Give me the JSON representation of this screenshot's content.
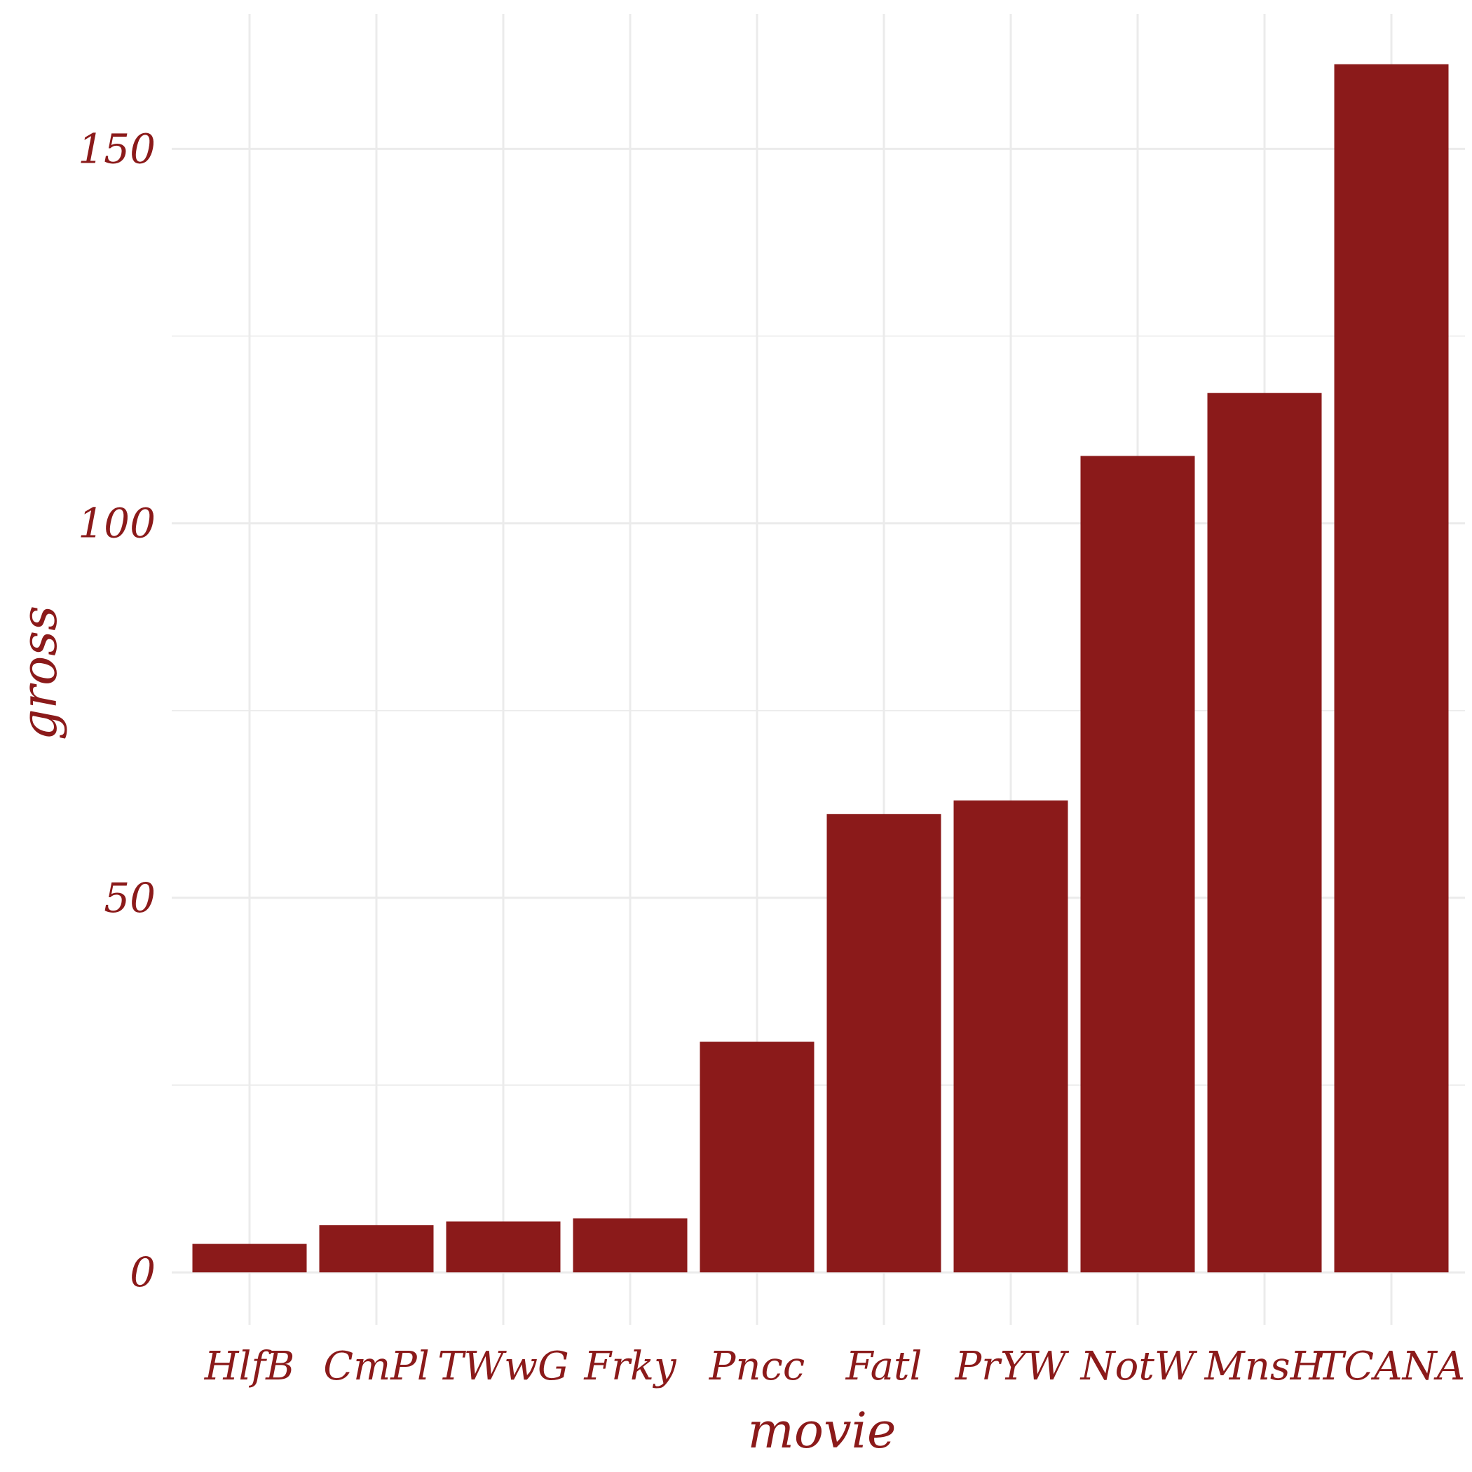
{
  "chart_data": {
    "type": "bar",
    "title": "",
    "xlabel": "movie",
    "ylabel": "gross",
    "categories": [
      "HlfB",
      "CmPl",
      "TWwG",
      "Frky",
      "Pncc",
      "Fatl",
      "PrYW",
      "NotW",
      "MnsH",
      "TCANA"
    ],
    "values": [
      3.8,
      6.3,
      6.8,
      7.2,
      30.8,
      61.2,
      63.0,
      109.0,
      117.4,
      161.3
    ],
    "ylim": [
      -7,
      168
    ],
    "yticks": [
      0,
      50,
      100,
      150
    ],
    "ytick_labels": [
      "0",
      "50",
      "100",
      "150"
    ],
    "grid": true,
    "bar_color": "#8b1a1a",
    "grid_color": "#ebebeb",
    "text_color": "#8b1a1a"
  }
}
